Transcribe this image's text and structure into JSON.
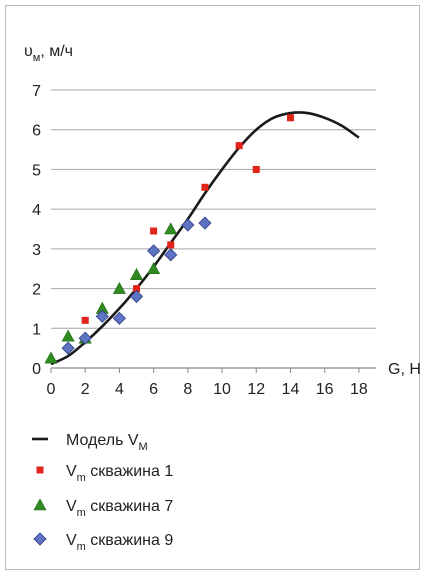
{
  "chart_data": {
    "type": "scatter",
    "y_label": {
      "symbol": "υ",
      "sub": "м",
      "unit": ", м/ч"
    },
    "x_label": "G, Н",
    "xlim": [
      0,
      19
    ],
    "ylim": [
      0,
      7
    ],
    "x_ticks": [
      0,
      2,
      4,
      6,
      8,
      10,
      12,
      14,
      16,
      18
    ],
    "y_ticks": [
      0,
      1,
      2,
      3,
      4,
      5,
      6,
      7
    ],
    "grid": "horizontal",
    "legend_position": "bottom-left",
    "series": [
      {
        "kind": "line",
        "legend": {
          "main": "Модель V",
          "sub": "М",
          "rest": ""
        },
        "color": "#1a1a1a",
        "x": [
          0,
          1,
          2,
          3,
          4,
          5,
          6,
          7,
          8,
          9,
          10,
          11,
          12,
          13,
          14,
          15,
          16,
          17,
          18
        ],
        "y": [
          0.1,
          0.3,
          0.65,
          1.05,
          1.5,
          2.0,
          2.55,
          3.15,
          3.75,
          4.4,
          5.0,
          5.55,
          6.0,
          6.3,
          6.42,
          6.42,
          6.3,
          6.1,
          5.8
        ]
      },
      {
        "kind": "square",
        "legend": {
          "main": "V",
          "sub": "m",
          "rest": " скважина 1"
        },
        "color": "#e2231a",
        "x": [
          2,
          5,
          6,
          7,
          9,
          11,
          12,
          14
        ],
        "y": [
          1.2,
          2.0,
          3.45,
          3.1,
          4.55,
          5.6,
          5.0,
          6.3
        ]
      },
      {
        "kind": "triangle",
        "legend": {
          "main": "V",
          "sub": "m",
          "rest": " скважина 7"
        },
        "color": "#2f8a1f",
        "x": [
          0,
          1,
          2,
          3,
          4,
          5,
          6,
          7
        ],
        "y": [
          0.25,
          0.8,
          0.75,
          1.5,
          2.0,
          2.35,
          2.5,
          3.5
        ]
      },
      {
        "kind": "diamond",
        "legend": {
          "main": "V",
          "sub": "m",
          "rest": " скважина 9"
        },
        "color": "#5f73c4",
        "x": [
          1,
          2,
          3,
          4,
          5,
          6,
          7,
          8,
          9
        ],
        "y": [
          0.5,
          0.75,
          1.3,
          1.25,
          1.8,
          2.95,
          2.85,
          3.6,
          3.65
        ]
      }
    ]
  }
}
